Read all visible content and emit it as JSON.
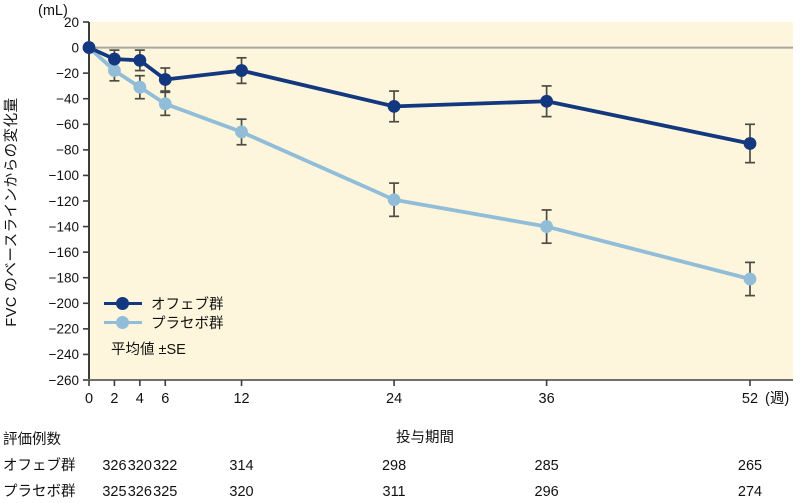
{
  "chart_data": {
    "type": "line",
    "title": "",
    "ylabel": "FVC のベースラインからの変化量",
    "y_unit": "(mL)",
    "xlabel": "投与期間",
    "x_unit": "(週)",
    "annotation": "平均値 ±SE",
    "x": [
      0,
      2,
      4,
      6,
      12,
      24,
      36,
      52
    ],
    "series": [
      {
        "name": "オフェブ群",
        "color": "#14387f",
        "values": [
          0,
          -9,
          -10,
          -25,
          -18,
          -46,
          -42,
          -75
        ],
        "se": [
          0,
          7,
          8,
          9,
          10,
          12,
          12,
          15
        ]
      },
      {
        "name": "プラセボ群",
        "color": "#92bdd9",
        "values": [
          0,
          -18,
          -31,
          -44,
          -66,
          -119,
          -140,
          -181
        ],
        "se": [
          0,
          8,
          9,
          9,
          10,
          13,
          13,
          13
        ]
      }
    ],
    "ylim": [
      -260,
      20
    ],
    "yticks": [
      20,
      0,
      -20,
      -40,
      -60,
      -80,
      -100,
      -120,
      -140,
      -160,
      -180,
      -200,
      -220,
      -240,
      -260
    ],
    "grid": false,
    "zero_line": true,
    "legend_position": "inside-lower-left",
    "background": "#fdf6dc",
    "error_bar_color": "#4e4c42",
    "axis_color": "#3c3c3c",
    "zero_line_color": "#a8a89e"
  },
  "n_table": {
    "title": "評価例数",
    "weeks": [
      2,
      4,
      6,
      12,
      24,
      36,
      52
    ],
    "rows": [
      {
        "label": "オフェブ群",
        "values": [
          326,
          320,
          322,
          314,
          298,
          285,
          265
        ]
      },
      {
        "label": "プラセボ群",
        "values": [
          325,
          326,
          325,
          320,
          311,
          296,
          274
        ]
      }
    ]
  }
}
